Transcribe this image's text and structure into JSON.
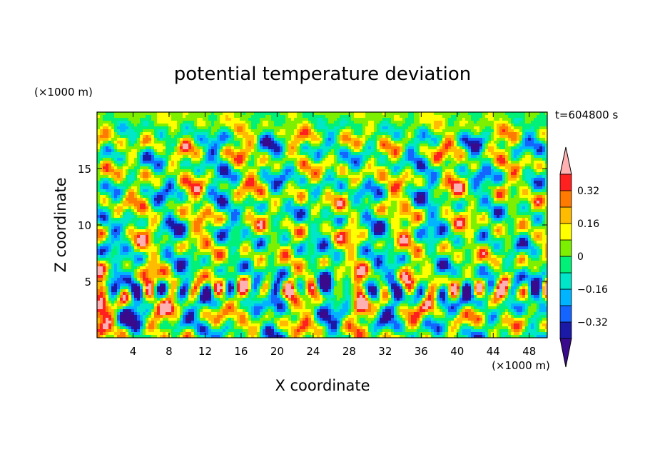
{
  "chart_data": {
    "type": "heatmap",
    "title": "potential temperature deviation",
    "xlabel": "X coordinate",
    "ylabel": "Z coordinate",
    "x_unit": "(×1000 m)",
    "y_unit": "(×1000 m)",
    "time_label": "t=604800 s",
    "xlim": [
      0,
      50
    ],
    "ylim": [
      0,
      20
    ],
    "x_ticks": [
      4,
      8,
      12,
      16,
      20,
      24,
      28,
      32,
      36,
      40,
      44,
      48
    ],
    "y_ticks": [
      5,
      10,
      15
    ],
    "colorbar": {
      "levels": [
        -0.4,
        -0.32,
        -0.24,
        -0.16,
        -0.08,
        0,
        0.08,
        0.16,
        0.24,
        0.32,
        0.4
      ],
      "tick_values": [
        0.32,
        0.16,
        0,
        -0.16,
        -0.32
      ],
      "tick_labels": [
        "0.32",
        "0.16",
        "0",
        "−0.16",
        "−0.32"
      ],
      "band_colors": [
        "#3a0a8c",
        "#1a1aa6",
        "#1464ff",
        "#00b4ff",
        "#00e6c8",
        "#00f078",
        "#7cf000",
        "#ffff00",
        "#ffbb00",
        "#ff7a00",
        "#ff2020",
        "#ffb0b0"
      ],
      "extend": "both"
    }
  }
}
